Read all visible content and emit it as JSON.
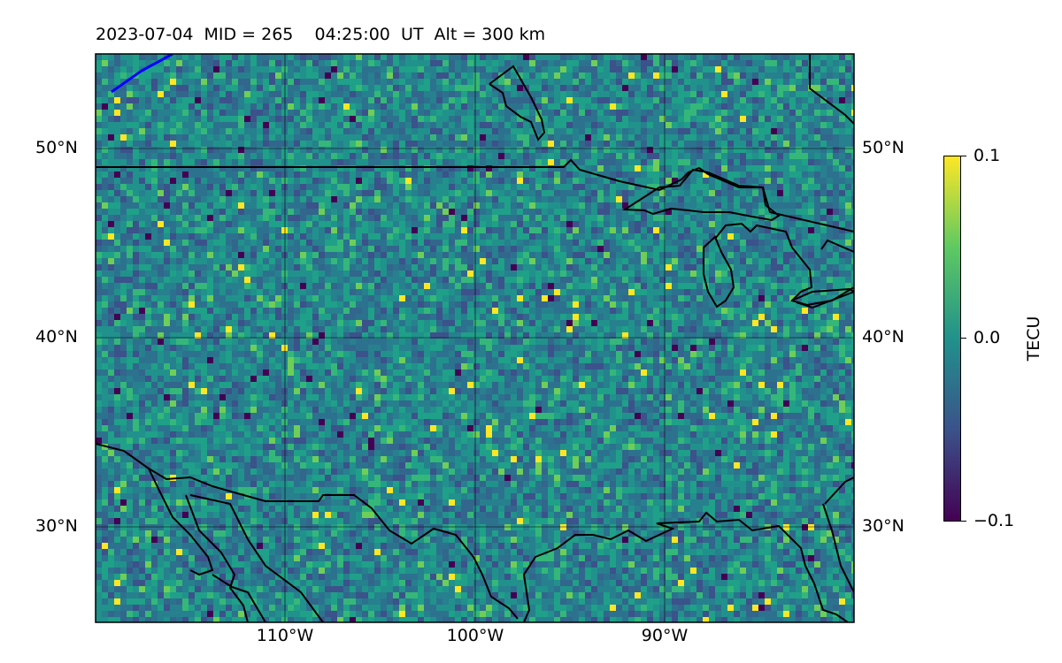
{
  "title": "2023-07-04  MID = 265    04:25:00  UT  Alt = 300 km",
  "map": {
    "projection": "plate-carree",
    "lon_range": [
      -120,
      -80
    ],
    "lat_range": [
      25,
      55
    ],
    "lat_ticks": [
      "50°N",
      "40°N",
      "30°N"
    ],
    "lon_ticks": [
      "110°W",
      "100°W",
      "90°W"
    ],
    "features": [
      "coastline",
      "country-borders",
      "great-lakes",
      "satellite-track"
    ],
    "track_color": "#0000ff",
    "gridline_color": "#000000"
  },
  "colorbar": {
    "label": "TECU",
    "colormap": "viridis",
    "range": [
      -0.1,
      0.1
    ],
    "ticks": [
      "0.1",
      "0.0",
      "−0.1"
    ],
    "colors": [
      "#fde725",
      "#5ec962",
      "#21918c",
      "#3b528b",
      "#440154"
    ]
  }
}
